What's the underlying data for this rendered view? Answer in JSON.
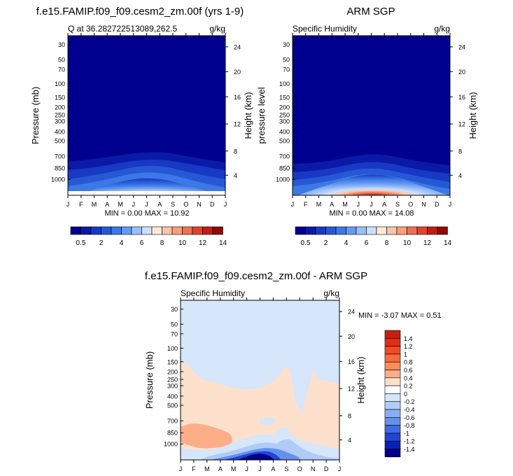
{
  "chart_data": [
    {
      "type": "heatmap",
      "title": "f.e15.FAMIP.f09_f09.cesm2_zm.00f (yrs 1-9)",
      "subtitle_left": "Q at 36.282722513089,262.5",
      "subtitle_right": "g/kg",
      "ylabel": "Pressure (mb)",
      "ylabel_right": "Height (km)",
      "x_ticks": [
        "J",
        "F",
        "M",
        "A",
        "M",
        "J",
        "J",
        "A",
        "S",
        "O",
        "N",
        "D",
        "J"
      ],
      "y_ticks": [
        "30",
        "50",
        "70",
        "100",
        "150",
        "200",
        "250",
        "300",
        "400",
        "500",
        "700",
        "850",
        "1000"
      ],
      "y_ticks_right": [
        "24",
        "20",
        "16",
        "12",
        "8",
        "4"
      ],
      "stats": "MIN =   0.00 MAX =  10.92",
      "colorbar_labels": [
        "0.5",
        "2",
        "4",
        "6",
        "8",
        "10",
        "12",
        "14"
      ],
      "colors": [
        "#00008f",
        "#0a1aa6",
        "#1739c4",
        "#2658d6",
        "#3c78e6",
        "#6699f0",
        "#99bff7",
        "#cce0fc",
        "#ffe8d9",
        "#fcc4a8",
        "#f79e7c",
        "#ee7052",
        "#e0432d",
        "#c21d13",
        "#8f0a00"
      ]
    },
    {
      "type": "heatmap",
      "title": "ARM SGP",
      "subtitle_left": "Specific Humidity",
      "subtitle_right": "g/kg",
      "ylabel": "pressure level",
      "ylabel_right": "Height (km)",
      "x_ticks": [
        "J",
        "F",
        "M",
        "A",
        "M",
        "J",
        "J",
        "A",
        "S",
        "O",
        "N",
        "D",
        "J"
      ],
      "y_ticks": [
        "30",
        "50",
        "70",
        "100",
        "150",
        "200",
        "250",
        "300",
        "400",
        "500",
        "700",
        "850",
        "1000"
      ],
      "y_ticks_right": [
        "24",
        "20",
        "16",
        "12",
        "8",
        "4"
      ],
      "stats": "MIN =   0.00 MAX =  14.08",
      "colorbar_labels": [
        "0.5",
        "2",
        "4",
        "6",
        "8",
        "10",
        "12",
        "14"
      ]
    },
    {
      "type": "heatmap",
      "title": "f.e15.FAMIP.f09_f09.cesm2_zm.00f - ARM SGP",
      "subtitle_left": "Specific Humidity",
      "subtitle_right": "g/kg",
      "ylabel": "Pressure (mb)",
      "ylabel_right": "Height (km)",
      "x_ticks": [
        "J",
        "F",
        "M",
        "A",
        "M",
        "J",
        "J",
        "A",
        "S",
        "O",
        "N",
        "D",
        "J"
      ],
      "y_ticks": [
        "30",
        "50",
        "70",
        "100",
        "150",
        "200",
        "250",
        "300",
        "400",
        "500",
        "700",
        "850",
        "1000"
      ],
      "y_ticks_right": [
        "24",
        "20",
        "16",
        "12",
        "8",
        "4"
      ],
      "stats": "MIN =  -3.07 MAX =   0.51",
      "colorbar_labels": [
        "1.4",
        "1.2",
        "1",
        "0.8",
        "0.6",
        "0.4",
        "0.2",
        "0",
        "-0.2",
        "-0.4",
        "-0.6",
        "-0.8",
        "-1",
        "-1.2",
        "-1.4"
      ],
      "colors": [
        "#c41f14",
        "#e02e1a",
        "#f24a26",
        "#fa6a3a",
        "#fc8c5c",
        "#fcae88",
        "#fde0cc",
        "#ffffff",
        "#d6e6fb",
        "#b0cbf7",
        "#8aaef2",
        "#6690ec",
        "#3f6ae3",
        "#1f45d6",
        "#0a1fb8",
        "#00008a"
      ]
    }
  ]
}
